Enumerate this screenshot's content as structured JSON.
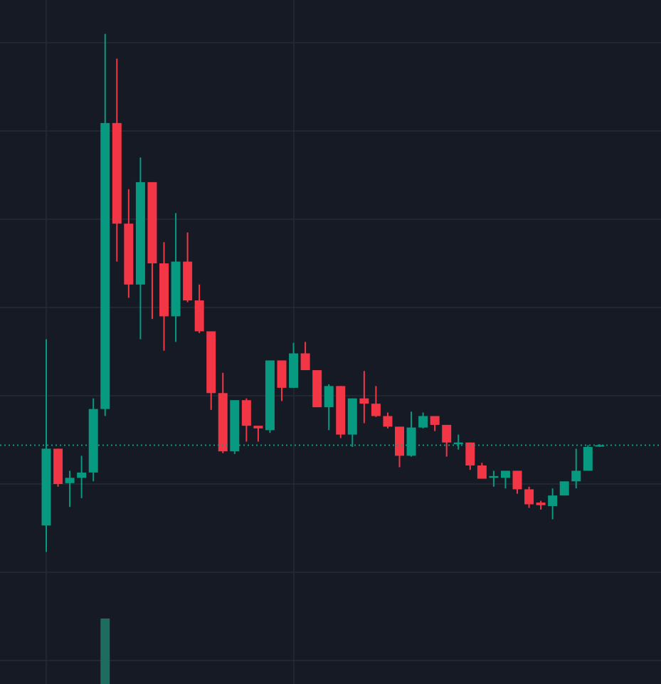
{
  "chart_data": {
    "type": "candlestick",
    "categories": [
      null,
      null,
      null,
      null,
      null,
      null,
      null,
      null,
      null,
      null,
      null,
      null,
      null,
      null,
      null,
      null,
      null,
      null,
      null,
      null,
      null,
      null,
      null,
      null,
      null,
      null,
      null,
      null,
      null,
      null,
      null,
      null,
      null,
      null,
      null,
      null,
      null,
      null,
      null,
      null,
      null,
      null,
      null,
      null,
      null,
      null,
      null,
      null
    ],
    "open": [
      2.53,
      3.4,
      3.01,
      3.07,
      3.13,
      3.85,
      7.09,
      5.95,
      5.26,
      6.42,
      5.5,
      4.9,
      5.52,
      5.08,
      4.73,
      4.03,
      3.37,
      3.95,
      3.66,
      3.61,
      4.4,
      4.09,
      4.48,
      4.29,
      3.87,
      4.11,
      3.56,
      3.97,
      3.91,
      3.77,
      3.65,
      3.32,
      3.64,
      3.77,
      3.67,
      3.45,
      3.47,
      3.21,
      3.07,
      3.07,
      3.15,
      2.94,
      2.79,
      2.75,
      2.87,
      3.03,
      3.15,
      3.43
    ],
    "high": [
      4.64,
      3.4,
      3.15,
      3.32,
      3.97,
      8.1,
      7.82,
      6.34,
      6.7,
      6.42,
      5.74,
      6.07,
      5.85,
      5.26,
      4.73,
      4.26,
      3.95,
      3.97,
      3.66,
      4.4,
      4.4,
      4.6,
      4.61,
      4.29,
      4.13,
      4.11,
      3.97,
      4.28,
      4.11,
      3.81,
      3.65,
      3.82,
      3.81,
      3.77,
      3.67,
      3.56,
      3.47,
      3.24,
      3.15,
      3.15,
      3.15,
      2.97,
      2.81,
      2.95,
      3.03,
      3.4,
      3.44,
      3.45
    ],
    "low": [
      2.23,
      2.97,
      2.74,
      2.84,
      3.03,
      3.77,
      5.52,
      5.11,
      4.64,
      4.87,
      4.51,
      4.61,
      5.06,
      4.71,
      3.84,
      3.35,
      3.34,
      3.48,
      3.48,
      3.58,
      3.94,
      4.09,
      4.29,
      3.87,
      3.61,
      3.52,
      3.42,
      3.69,
      3.76,
      3.63,
      3.19,
      3.31,
      3.63,
      3.6,
      3.31,
      3.39,
      3.16,
      3.06,
      2.97,
      2.95,
      2.89,
      2.73,
      2.71,
      2.6,
      2.87,
      2.95,
      3.15,
      3.42
    ],
    "close": [
      3.4,
      3.0,
      3.07,
      3.13,
      3.85,
      7.09,
      5.95,
      5.26,
      6.42,
      5.5,
      4.9,
      5.52,
      5.08,
      4.73,
      4.03,
      3.37,
      3.95,
      3.66,
      3.63,
      4.4,
      4.09,
      4.48,
      4.29,
      3.87,
      4.11,
      3.56,
      3.97,
      3.91,
      3.77,
      3.65,
      3.32,
      3.64,
      3.77,
      3.67,
      3.47,
      3.47,
      3.21,
      3.06,
      3.09,
      3.15,
      2.94,
      2.77,
      2.76,
      2.87,
      3.03,
      3.15,
      3.42,
      3.44
    ],
    "volume": [
      null,
      null,
      null,
      null,
      null,
      1,
      null,
      null,
      null,
      null,
      null,
      null,
      null,
      null,
      null,
      null,
      null,
      null,
      null,
      null,
      null,
      null,
      null,
      null,
      null,
      null,
      null,
      null,
      null,
      null,
      null,
      null,
      null,
      null,
      null,
      null,
      null,
      null,
      null,
      null,
      null,
      null,
      null,
      null,
      null,
      null,
      null,
      null
    ],
    "volume_lim": [
      0,
      1.2
    ],
    "price_line": 3.44,
    "ylim": [
      0.734,
      8.484
    ],
    "yticks": [
      1,
      2,
      3,
      4,
      5,
      6,
      7,
      8
    ],
    "grid": true,
    "up_color": "#089981",
    "down_color": "#f23645",
    "volume_color": "#1e6b5f",
    "price_line_color": "#089981"
  }
}
